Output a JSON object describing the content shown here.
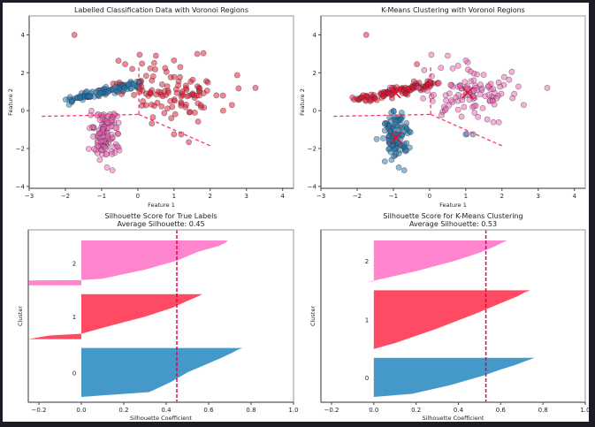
{
  "figure": {
    "background": "#ffffff",
    "frame_background": "#1b1c25"
  },
  "colors": {
    "blue": "#1f77b4",
    "red": "#e8102d",
    "pink": "#f15fb7",
    "boundary": "#ff3366",
    "centroid": "#e8102d",
    "sil_blue": "#4599c9",
    "sil_red": "#ff4a63",
    "sil_pink": "#ff85cf",
    "avg_line": "#e8004d"
  },
  "chart_data": [
    {
      "id": "true-labels-scatter",
      "type": "scatter",
      "title": "Labelled Classification Data with Voronoi Regions",
      "xlabel": "Feature 1",
      "ylabel": "Feature 2",
      "xlim": [
        -3,
        4.3
      ],
      "ylim": [
        -4.1,
        5.0
      ],
      "xticks": [
        -3,
        -2,
        -1,
        0,
        1,
        2,
        3,
        4
      ],
      "yticks": [
        -4,
        -2,
        0,
        2,
        4
      ],
      "xtick_labels": [
        "−3",
        "−2",
        "−1",
        "0",
        "1",
        "2",
        "3",
        "4"
      ],
      "ytick_labels": [
        "−4",
        "−2",
        "0",
        "2",
        "4"
      ],
      "voronoi_edges": [
        [
          [
            -2.65,
            -0.3
          ],
          [
            0.03,
            -0.2
          ]
        ],
        [
          [
            0.03,
            -0.2
          ],
          [
            0.03,
            2.4
          ]
        ],
        [
          [
            0.03,
            -0.2
          ],
          [
            2.05,
            -1.9
          ]
        ]
      ],
      "clusters": [
        {
          "label": 0,
          "color_key": "blue",
          "center": [
            -1.0,
            1.0
          ],
          "kind": "band",
          "from": [
            -2.0,
            0.55
          ],
          "to": [
            0.1,
            1.45
          ],
          "spread": 0.12,
          "n": 110
        },
        {
          "label": 1,
          "color_key": "red",
          "center": [
            1.05,
            0.95
          ],
          "kind": "blob",
          "sx": 0.75,
          "sy": 0.75,
          "n": 110
        },
        {
          "label": 2,
          "color_key": "pink",
          "center": [
            -0.95,
            -1.2
          ],
          "kind": "blob",
          "sx": 0.18,
          "sy": 0.75,
          "n": 110
        }
      ],
      "outliers": [
        {
          "x": -1.75,
          "y": 4.0,
          "color_key": "red"
        },
        {
          "x": 0.05,
          "y": 2.95,
          "color_key": "red"
        },
        {
          "x": 0.5,
          "y": 2.9,
          "color_key": "red"
        },
        {
          "x": 1.0,
          "y": 2.65,
          "color_key": "red"
        },
        {
          "x": 3.25,
          "y": 1.2,
          "color_key": "red"
        },
        {
          "x": 2.6,
          "y": 0.3,
          "color_key": "red"
        },
        {
          "x": 1.0,
          "y": -1.25,
          "color_key": "red"
        },
        {
          "x": 1.2,
          "y": -1.25,
          "color_key": "red"
        },
        {
          "x": -0.35,
          "y": 2.45,
          "color_key": "red"
        },
        {
          "x": -0.85,
          "y": -3.0,
          "color_key": "pink"
        },
        {
          "x": -0.7,
          "y": -3.15,
          "color_key": "pink"
        },
        {
          "x": -1.05,
          "y": -2.6,
          "color_key": "pink"
        }
      ],
      "centroids": []
    },
    {
      "id": "kmeans-scatter",
      "type": "scatter",
      "title": "K-Means Clustering with Voronoi Regions",
      "xlabel": "Feature 1",
      "ylabel": "Feature 2",
      "xlim": [
        -3,
        4.3
      ],
      "ylim": [
        -4.1,
        5.0
      ],
      "xticks": [
        -3,
        -2,
        -1,
        0,
        1,
        2,
        3,
        4
      ],
      "yticks": [
        -4,
        -2,
        0,
        2,
        4
      ],
      "xtick_labels": [
        "−3",
        "−2",
        "−1",
        "0",
        "1",
        "2",
        "3",
        "4"
      ],
      "ytick_labels": [
        "−4",
        "−2",
        "0",
        "2",
        "4"
      ],
      "voronoi_edges": [
        [
          [
            -2.65,
            -0.3
          ],
          [
            0.03,
            -0.2
          ]
        ],
        [
          [
            0.03,
            -0.2
          ],
          [
            0.03,
            2.4
          ]
        ],
        [
          [
            0.03,
            -0.2
          ],
          [
            2.05,
            -1.9
          ]
        ]
      ],
      "clusters": [
        {
          "label": 0,
          "color_key": "red",
          "center": [
            -1.0,
            1.0
          ],
          "kind": "band",
          "from": [
            -2.0,
            0.55
          ],
          "to": [
            0.1,
            1.45
          ],
          "spread": 0.12,
          "n": 110
        },
        {
          "label": 1,
          "color_key": "pink",
          "center": [
            1.05,
            0.95
          ],
          "kind": "blob",
          "sx": 0.75,
          "sy": 0.75,
          "n": 110
        },
        {
          "label": 2,
          "color_key": "blue",
          "center": [
            -0.95,
            -1.2
          ],
          "kind": "blob",
          "sx": 0.18,
          "sy": 0.75,
          "n": 110
        }
      ],
      "outliers": [
        {
          "x": -1.75,
          "y": 4.0,
          "color_key": "red"
        },
        {
          "x": 0.05,
          "y": 2.95,
          "color_key": "pink"
        },
        {
          "x": 0.5,
          "y": 2.9,
          "color_key": "pink"
        },
        {
          "x": 1.0,
          "y": 2.65,
          "color_key": "pink"
        },
        {
          "x": 3.25,
          "y": 1.2,
          "color_key": "pink"
        },
        {
          "x": 2.6,
          "y": 0.3,
          "color_key": "pink"
        },
        {
          "x": 1.0,
          "y": -1.25,
          "color_key": "blue"
        },
        {
          "x": 1.2,
          "y": -1.25,
          "color_key": "blue"
        },
        {
          "x": -0.35,
          "y": 2.45,
          "color_key": "red"
        },
        {
          "x": -0.85,
          "y": -3.0,
          "color_key": "blue"
        },
        {
          "x": -0.7,
          "y": -3.15,
          "color_key": "blue"
        },
        {
          "x": -1.05,
          "y": -2.6,
          "color_key": "blue"
        }
      ],
      "centroids": [
        {
          "x": -0.95,
          "y": 0.95
        },
        {
          "x": 1.05,
          "y": 0.95
        },
        {
          "x": -0.92,
          "y": -1.42
        }
      ]
    },
    {
      "id": "true-labels-silhouette",
      "type": "area",
      "title": "Silhouette Score for  True Labels",
      "subtitle": "Average Silhouette: 0.45",
      "xlabel": "Silhouette Coefficient",
      "ylabel": "Cluster",
      "xlim": [
        -0.25,
        1.0
      ],
      "xticks": [
        -0.2,
        0.0,
        0.2,
        0.4,
        0.6,
        0.8,
        1.0
      ],
      "xtick_labels": [
        "−0.2",
        "0.0",
        "0.2",
        "0.4",
        "0.6",
        "0.8",
        "1.0"
      ],
      "average": 0.45,
      "clusters": [
        {
          "label": "0",
          "color_key": "sil_blue",
          "profile": [
            [
              0,
              0.0
            ],
            [
              0.1,
              0.32
            ],
            [
              0.3,
              0.42
            ],
            [
              0.5,
              0.5
            ],
            [
              0.65,
              0.58
            ],
            [
              0.8,
              0.66
            ],
            [
              0.9,
              0.71
            ],
            [
              0.97,
              0.74
            ],
            [
              1,
              0.76
            ]
          ],
          "size": 120
        },
        {
          "label": "1",
          "color_key": "sil_red",
          "profile": [
            [
              0,
              -0.25
            ],
            [
              0.08,
              -0.15
            ],
            [
              0.12,
              0.0
            ],
            [
              0.3,
              0.14
            ],
            [
              0.5,
              0.3
            ],
            [
              0.7,
              0.43
            ],
            [
              0.85,
              0.5
            ],
            [
              0.95,
              0.55
            ],
            [
              1,
              0.57
            ]
          ],
          "size": 110
        },
        {
          "label": "2",
          "color_key": "sil_pink",
          "profile": [
            [
              0,
              -0.25
            ],
            [
              0.11,
              -0.25
            ],
            [
              0.12,
              0.0
            ],
            [
              0.15,
              0.1
            ],
            [
              0.35,
              0.3
            ],
            [
              0.55,
              0.45
            ],
            [
              0.75,
              0.55
            ],
            [
              0.88,
              0.65
            ],
            [
              0.95,
              0.68
            ],
            [
              1,
              0.69
            ]
          ],
          "size": 110
        }
      ]
    },
    {
      "id": "kmeans-silhouette",
      "type": "area",
      "title": "Silhouette Score for  K-Means Clustering",
      "subtitle": "Average Silhouette: 0.53",
      "xlabel": "Silhouette Coefficient",
      "ylabel": "Cluster",
      "xlim": [
        -0.25,
        1.0
      ],
      "xticks": [
        -0.2,
        0.0,
        0.2,
        0.4,
        0.6,
        0.8,
        1.0
      ],
      "xtick_labels": [
        "−0.2",
        "0.0",
        "0.2",
        "0.4",
        "0.6",
        "0.8",
        "1.0"
      ],
      "average": 0.53,
      "clusters": [
        {
          "label": "0",
          "color_key": "sil_blue",
          "profile": [
            [
              0,
              0.0
            ],
            [
              0.08,
              0.18
            ],
            [
              0.3,
              0.36
            ],
            [
              0.55,
              0.52
            ],
            [
              0.7,
              0.6
            ],
            [
              0.82,
              0.67
            ],
            [
              0.92,
              0.72
            ],
            [
              1,
              0.76
            ]
          ],
          "size": 100
        },
        {
          "label": "1",
          "color_key": "sil_red",
          "profile": [
            [
              0,
              0.0
            ],
            [
              0.1,
              0.1
            ],
            [
              0.35,
              0.3
            ],
            [
              0.6,
              0.48
            ],
            [
              0.78,
              0.6
            ],
            [
              0.9,
              0.68
            ],
            [
              0.96,
              0.71
            ],
            [
              1,
              0.74
            ]
          ],
          "size": 150
        },
        {
          "label": "2",
          "color_key": "sil_pink",
          "profile": [
            [
              0,
              -0.03
            ],
            [
              0.02,
              0.0
            ],
            [
              0.25,
              0.2
            ],
            [
              0.5,
              0.38
            ],
            [
              0.7,
              0.5
            ],
            [
              0.85,
              0.57
            ],
            [
              0.95,
              0.61
            ],
            [
              1,
              0.63
            ]
          ],
          "size": 105
        }
      ]
    }
  ]
}
